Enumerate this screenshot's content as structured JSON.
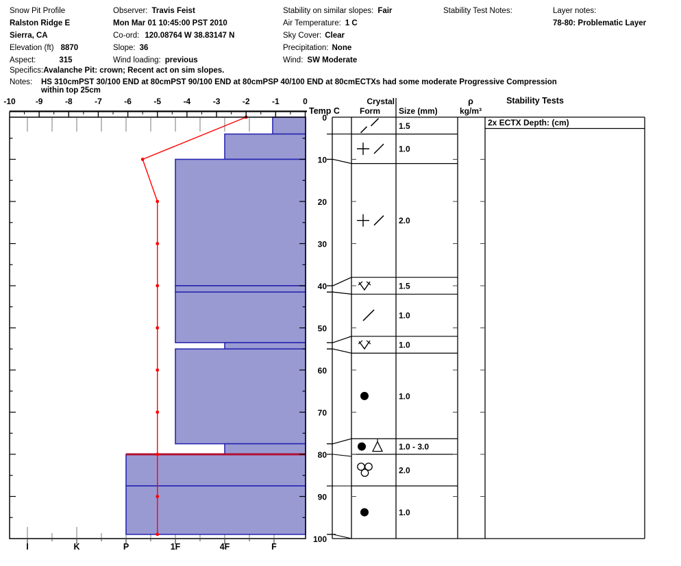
{
  "header": {
    "col1": {
      "title": "Snow Pit Profile",
      "site": "Ralston Ridge E",
      "region": "Sierra, CA",
      "elevation_label": "Elevation (ft)",
      "elevation": "8870",
      "aspect_label": "Aspect:",
      "aspect": "315"
    },
    "col2": {
      "observer_label": "Observer:",
      "observer": "Travis Feist",
      "datetime": "Mon Mar 01 10:45:00 PST 2010",
      "coord_label": "Co-ord:",
      "coord": "120.08764 W 38.83147 N",
      "slope_label": "Slope:",
      "slope": "36",
      "wind_loading_label": "Wind loading:",
      "wind_loading": "previous"
    },
    "col3": {
      "stability_label": "Stability on similar slopes:",
      "stability": "Fair",
      "air_temp_label": "Air Temperature:",
      "air_temp": "1 C",
      "sky_label": "Sky Cover:",
      "sky": "Clear",
      "precip_label": "Precipitation:",
      "precip": "None",
      "wind_label": "Wind:",
      "wind": "SW Moderate"
    },
    "col4": {
      "stability_test_notes_label": "Stability Test Notes:"
    },
    "col5": {
      "layer_notes_label": "Layer notes:",
      "layer_note": "78-80: Problematic Layer"
    },
    "specifics_label": "Specifics:",
    "specifics": "Avalanche Pit: crown; Recent act on sim slopes.",
    "notes_label": "Notes:",
    "notes_line1": "HS 310cmPST 30/100 END at 80cmPST 90/100 END at 80cmPSP 40/100 END at 80cmECTXs had some moderate Progressive Compression",
    "notes_line2": "within top 25cm"
  },
  "chart_data": {
    "type": "bar",
    "subtype": "snow-pit-hardness-profile",
    "temp_axis": {
      "label": "Temp C",
      "min": -10,
      "max": 0,
      "tick_labels": [
        "-10",
        "-9",
        "-8",
        "-7",
        "-6",
        "-5",
        "-4",
        "-3",
        "-2",
        "-1",
        "0"
      ]
    },
    "depth_axis": {
      "unit": "cm",
      "min": 0,
      "max": 100,
      "tick_labels": [
        "0",
        "10",
        "20",
        "30",
        "40",
        "50",
        "60",
        "70",
        "80",
        "90",
        "100"
      ]
    },
    "hardness_axis": {
      "categories": [
        "I",
        "K",
        "P",
        "1F",
        "4F",
        "F"
      ]
    },
    "column_headers": {
      "crystal": "Crystal",
      "form": "Form",
      "size": "Size (mm)",
      "rho": "ρ",
      "rho_unit": "kg/m³",
      "stability_tests": "Stability Tests"
    },
    "stability_tests_entry": "2x ECTX   Depth: (cm)",
    "layers": [
      {
        "top_cm": 0,
        "bottom_cm": 4,
        "hardness": "F",
        "form": "DF2",
        "form_desc": "decomposing fragments (two slashes)",
        "size_mm": "1.5",
        "row": [
          0,
          4
        ]
      },
      {
        "top_cm": 4,
        "bottom_cm": 10,
        "hardness": "4F",
        "form": "PPDF",
        "form_desc": "precipitation particles + decomposing",
        "size_mm": "1.0",
        "row": [
          4,
          11
        ]
      },
      {
        "top_cm": 10,
        "bottom_cm": 40,
        "hardness": "1F",
        "form": "PPDF",
        "form_desc": "precipitation particles + decomposing",
        "size_mm": "2.0",
        "row": [
          11,
          38
        ]
      },
      {
        "top_cm": 40,
        "bottom_cm": 41.5,
        "hardness": "1F",
        "form": "SH",
        "form_desc": "buried surface hoar",
        "size_mm": "1.5",
        "row": [
          38,
          42
        ]
      },
      {
        "top_cm": 41.5,
        "bottom_cm": 53.5,
        "hardness": "1F",
        "form": "DF",
        "form_desc": "decomposing fragments",
        "size_mm": "1.0",
        "row": [
          42,
          52
        ]
      },
      {
        "top_cm": 53.5,
        "bottom_cm": 55,
        "hardness": "4F",
        "form": "SH",
        "form_desc": "buried surface hoar",
        "size_mm": "1.0",
        "row": [
          52,
          56
        ]
      },
      {
        "top_cm": 55,
        "bottom_cm": 77.5,
        "hardness": "1F",
        "form": "RG",
        "form_desc": "rounded grains",
        "size_mm": "1.0",
        "row": [
          56,
          76.3
        ]
      },
      {
        "top_cm": 77.5,
        "bottom_cm": 80,
        "hardness": "4F",
        "form": "RGFC",
        "form_desc": "rounds + facets (triangle)",
        "size_mm": "1.0 -  3.0",
        "row": [
          76.3,
          80
        ]
      },
      {
        "top_cm": 80,
        "bottom_cm": 87.5,
        "hardness": "P",
        "form": "MFCL",
        "form_desc": "melt form cluster",
        "size_mm": "2.0",
        "row": [
          80,
          87.5
        ]
      },
      {
        "top_cm": 87.5,
        "bottom_cm": 99,
        "hardness": "P",
        "form": "RG",
        "form_desc": "rounded grains",
        "size_mm": "1.0",
        "row": [
          87.5,
          100
        ]
      }
    ],
    "temperature_series": {
      "depths_cm": [
        0,
        10,
        20,
        30,
        40,
        50,
        60,
        70,
        80,
        90,
        99
      ],
      "temps_c": [
        -2,
        -5.5,
        -5,
        -5,
        -5,
        -5,
        -5,
        -5,
        -5,
        -5,
        -5
      ]
    },
    "weak_layer_line": {
      "depth_cm": 80,
      "note": "problematic layer 78-80"
    },
    "colors": {
      "bar_fill": "#9A9AD3",
      "bar_stroke": "#2828B0",
      "temp_line": "#FF0000",
      "weak_layer": "#B01030",
      "gray_tick": "#909090",
      "frame": "#000000"
    }
  }
}
